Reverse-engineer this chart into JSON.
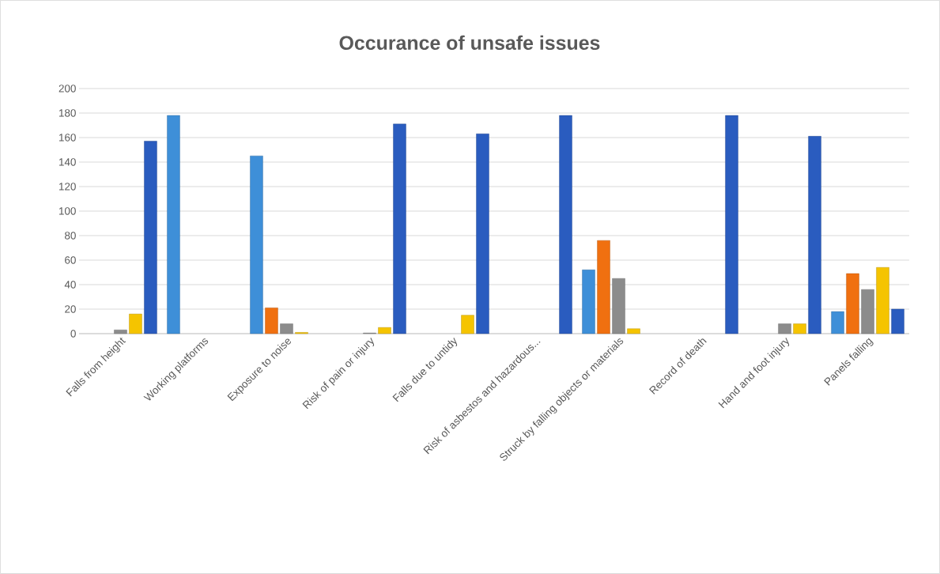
{
  "chart_data": {
    "type": "bar",
    "title": "Occurance of unsafe issues",
    "categories": [
      "Falls from height",
      "Working platforms",
      "Exposure to noise",
      "Risk of pain or injury",
      "Falls due to untidy",
      "Risk of asbestos and hazardous...",
      "Struck by falling objects or materials",
      "Record of death",
      "Hand and foot injury",
      "Panels falling"
    ],
    "series": [
      {
        "color": "#3e8fd8",
        "values": [
          null,
          178,
          145,
          null,
          null,
          null,
          52,
          null,
          null,
          18
        ]
      },
      {
        "color": "#f07010",
        "values": [
          null,
          null,
          21,
          null,
          null,
          null,
          76,
          null,
          null,
          49
        ]
      },
      {
        "color": "#8c8c8c",
        "values": [
          3,
          null,
          8,
          0.5,
          null,
          null,
          45,
          null,
          8,
          36
        ]
      },
      {
        "color": "#f5c400",
        "values": [
          16,
          null,
          1,
          5,
          15,
          null,
          4,
          null,
          8,
          54
        ]
      },
      {
        "color": "#2a5cbf",
        "values": [
          157,
          null,
          null,
          171,
          163,
          178,
          null,
          178,
          161,
          20
        ]
      }
    ],
    "ylim": [
      0,
      200
    ],
    "yticks": [
      0,
      20,
      40,
      60,
      80,
      100,
      120,
      140,
      160,
      180,
      200
    ],
    "grid": "y"
  }
}
